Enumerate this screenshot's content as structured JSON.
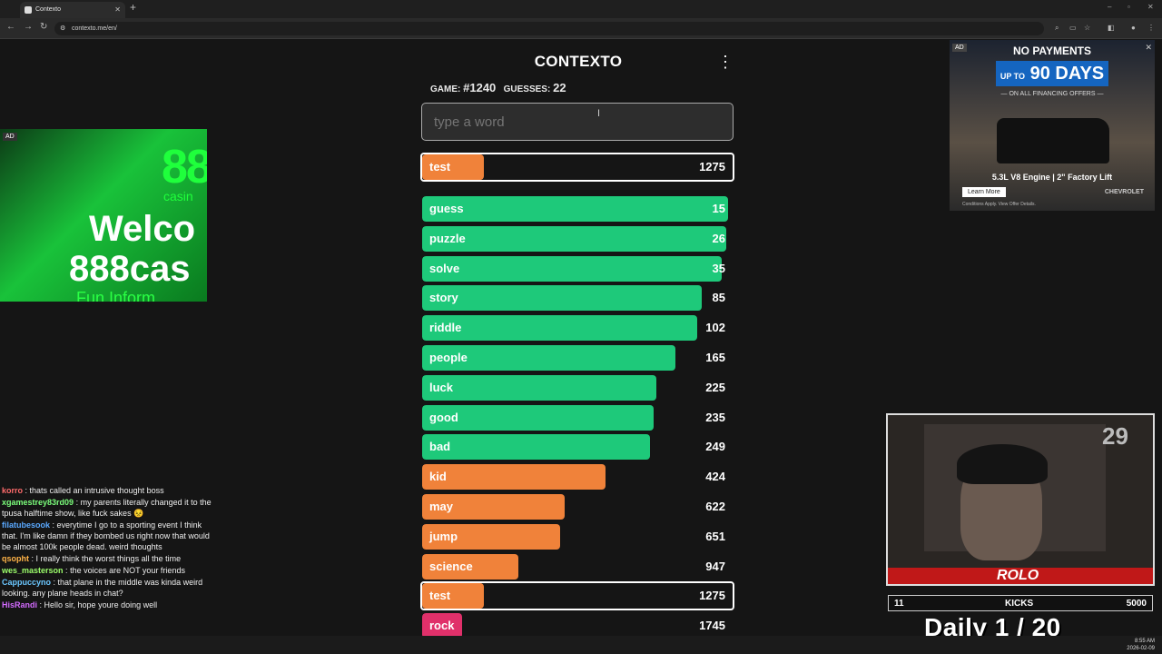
{
  "browser": {
    "tab_title": "Contexto",
    "tab_close": "✕",
    "new_tab": "+",
    "url": "contexto.me/en/",
    "win_min": "–",
    "win_max": "▫",
    "win_close": "✕"
  },
  "game": {
    "title": "CONTEXTO",
    "menu_glyph": "⋮",
    "game_label": "GAME:",
    "game_number": "#1240",
    "guesses_label": "GUESSES:",
    "guesses_count": "22",
    "input_placeholder": "type a word",
    "last_guess": {
      "word": "test",
      "rank": 1275,
      "fill": 0.2,
      "color": "#f0823a"
    },
    "guesses": [
      {
        "word": "guess",
        "rank": 15,
        "fill": 0.985,
        "color": "#1ec97a"
      },
      {
        "word": "puzzle",
        "rank": 26,
        "fill": 0.98,
        "color": "#1ec97a"
      },
      {
        "word": "solve",
        "rank": 35,
        "fill": 0.965,
        "color": "#1ec97a"
      },
      {
        "word": "story",
        "rank": 85,
        "fill": 0.9,
        "color": "#1ec97a"
      },
      {
        "word": "riddle",
        "rank": 102,
        "fill": 0.885,
        "color": "#1ec97a"
      },
      {
        "word": "people",
        "rank": 165,
        "fill": 0.815,
        "color": "#1ec97a"
      },
      {
        "word": "luck",
        "rank": 225,
        "fill": 0.755,
        "color": "#1ec97a"
      },
      {
        "word": "good",
        "rank": 235,
        "fill": 0.745,
        "color": "#1ec97a"
      },
      {
        "word": "bad",
        "rank": 249,
        "fill": 0.735,
        "color": "#1ec97a"
      },
      {
        "word": "kid",
        "rank": 424,
        "fill": 0.59,
        "color": "#f0823a"
      },
      {
        "word": "may",
        "rank": 622,
        "fill": 0.46,
        "color": "#f0823a"
      },
      {
        "word": "jump",
        "rank": 651,
        "fill": 0.445,
        "color": "#f0823a"
      },
      {
        "word": "science",
        "rank": 947,
        "fill": 0.31,
        "color": "#f0823a"
      },
      {
        "word": "test",
        "rank": 1275,
        "fill": 0.2,
        "color": "#f0823a",
        "selected": true
      },
      {
        "word": "rock",
        "rank": 1745,
        "fill": 0.13,
        "color": "#e0306a"
      }
    ]
  },
  "ad_left": {
    "tag": "AD",
    "line1": "88",
    "line2": "casin",
    "line3": "Welco",
    "line4": "888cas",
    "line5": "Fun Inform"
  },
  "ad_right": {
    "tag": "AD",
    "headline": "NO PAYMENTS",
    "days_prefix": "UP TO",
    "days": "90 DAYS",
    "sub": "— ON ALL FINANCING OFFERS —",
    "spec": "5.3L V8 Engine  |  2\" Factory Lift",
    "cta": "Learn More",
    "brand": "CHEVROLET",
    "disclaimer": "Conditions Apply. View Offer Details."
  },
  "chat": [
    {
      "user": "korro",
      "color": "#ff6b6b",
      "text": "thats called an intrusive thought boss"
    },
    {
      "user": "xgamestrey83rd09",
      "color": "#7cff7c",
      "text": "my parents literally changed it to the tpusa halftime show, like fuck sakes 😣"
    },
    {
      "user": "filatubesook",
      "color": "#5aa9ff",
      "text": "everytime I go to a sporting event I think that. I'm like damn if they bombed us right now that would be almost 100k people dead. weird thoughts"
    },
    {
      "user": "qsopht",
      "color": "#ffb347",
      "text": "I really think the worst things all the time"
    },
    {
      "user": "wes_masterson",
      "color": "#9dff6b",
      "text": "the voices are NOT your friends"
    },
    {
      "user": "Cappuccyno",
      "color": "#6bc7ff",
      "text": "that plane in the middle was kinda weird looking. any plane heads in chat?"
    },
    {
      "user": "HisRandi",
      "color": "#d36bff",
      "text": "Hello sir, hope youre doing well"
    }
  ],
  "stream": {
    "cam_number": "29",
    "brand": "ROLO",
    "stat_left": "11",
    "stat_mid": "KICKS",
    "stat_right": "5000",
    "daily": "Daily  1 / 20"
  },
  "clock": {
    "time": "8:55 AM",
    "date": "2026-02-09"
  }
}
